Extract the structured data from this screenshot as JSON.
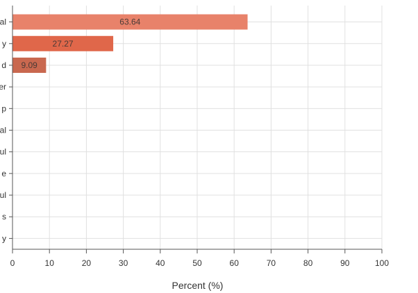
{
  "chart_data": {
    "type": "bar",
    "orientation": "horizontal",
    "categories": [
      "al",
      "y",
      "d",
      "er",
      "p",
      "al",
      "ul",
      "e",
      "ul",
      "s",
      "y"
    ],
    "values": [
      63.64,
      27.27,
      9.09,
      0,
      0,
      0,
      0,
      0,
      0,
      0,
      0
    ],
    "value_labels": [
      "63.64",
      "27.27",
      "9.09",
      "",
      "",
      "",
      "",
      "",
      "",
      "",
      ""
    ],
    "bar_colors": [
      "#e8826a",
      "#e0674a",
      "#c9684f"
    ],
    "xlabel": "Percent (%)",
    "ylabel": "",
    "xlim": [
      0,
      100
    ],
    "xticks": [
      "0",
      "10",
      "20",
      "30",
      "40",
      "50",
      "60",
      "70",
      "80",
      "90",
      "100"
    ],
    "grid": true,
    "legend": "none"
  }
}
